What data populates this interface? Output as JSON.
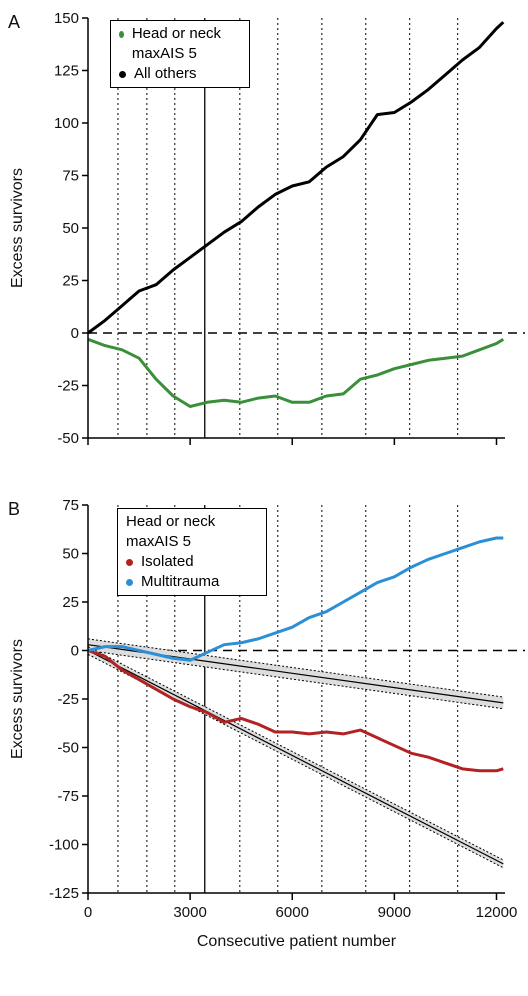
{
  "chart_data": [
    {
      "type": "line",
      "panel_label": "A",
      "y_label": "Excess survivors",
      "x": [
        0,
        500,
        1000,
        1500,
        2000,
        2500,
        3000,
        3500,
        4000,
        4500,
        5000,
        5500,
        6000,
        6500,
        7000,
        7500,
        8000,
        8500,
        9000,
        9500,
        10000,
        10500,
        11000,
        11500,
        12000,
        12200
      ],
      "series": [
        {
          "name": "Head or neck maxAIS 5",
          "color": "#3a8f3a",
          "values": [
            -3,
            -6,
            -8,
            -12,
            -22,
            -30,
            -35,
            -33,
            -32,
            -33,
            -31,
            -30,
            -33,
            -33,
            -30,
            -29,
            -22,
            -20,
            -17,
            -15,
            -13,
            -12,
            -11,
            -8,
            -5,
            -3
          ]
        },
        {
          "name": "All others",
          "color": "#000000",
          "values": [
            0,
            6,
            13,
            20,
            23,
            30,
            36,
            42,
            48,
            53,
            60,
            66,
            70,
            72,
            79,
            84,
            92,
            104,
            105,
            110,
            116,
            123,
            130,
            136,
            145,
            148
          ]
        }
      ],
      "xlim": [
        0,
        12250
      ],
      "xticks": [
        0,
        3000,
        6000,
        9000,
        12000
      ],
      "show_xtick_labels": false,
      "ylim": [
        -50,
        150
      ],
      "yticks": [
        -50,
        -25,
        0,
        25,
        50,
        75,
        100,
        125,
        150
      ],
      "reference_line_y": 0,
      "reference_lines_x": [
        880,
        1730,
        2550,
        4460,
        5575,
        6870,
        8160,
        9450,
        10860
      ],
      "solid_line_x": 3430
    },
    {
      "type": "line",
      "panel_label": "B",
      "y_label": "Excess survivors",
      "x_label": "Consecutive patient number",
      "legend_title": "Head or neck maxAIS 5",
      "x": [
        0,
        500,
        1000,
        1500,
        2000,
        2500,
        3000,
        3500,
        4000,
        4500,
        5000,
        5500,
        6000,
        6500,
        7000,
        7500,
        8000,
        8500,
        9000,
        9500,
        10000,
        10500,
        11000,
        11500,
        12000,
        12200
      ],
      "series": [
        {
          "name": "Isolated",
          "color": "#b22222",
          "values": [
            0,
            -3,
            -10,
            -15,
            -20,
            -25,
            -29,
            -32,
            -37,
            -35,
            -38,
            -42,
            -42,
            -43,
            -42,
            -43,
            -41,
            -45,
            -49,
            -53,
            -55,
            -58,
            -61,
            -62,
            -62,
            -61
          ]
        },
        {
          "name": "Multitrauma",
          "color": "#2a8fd6",
          "values": [
            0,
            2,
            2,
            0,
            -2,
            -4,
            -5,
            -1,
            3,
            4,
            6,
            9,
            12,
            17,
            20,
            25,
            30,
            35,
            38,
            43,
            47,
            50,
            53,
            56,
            58,
            58
          ]
        }
      ],
      "expected_lines": [
        {
          "x": [
            0,
            12200
          ],
          "values": [
            3,
            -27
          ],
          "band": [
            3,
            3
          ]
        },
        {
          "x": [
            0,
            12200
          ],
          "values": [
            0,
            -110
          ],
          "band": [
            2,
            2
          ]
        }
      ],
      "xlim": [
        0,
        12250
      ],
      "xticks": [
        0,
        3000,
        6000,
        9000,
        12000
      ],
      "show_xtick_labels": true,
      "ylim": [
        -125,
        75
      ],
      "yticks": [
        -125,
        -100,
        -75,
        -50,
        -25,
        0,
        25,
        50,
        75
      ],
      "reference_line_y": 0,
      "reference_lines_x": [
        880,
        1730,
        2550,
        4460,
        5575,
        6870,
        8160,
        9450,
        10860
      ],
      "solid_line_x": 3430
    }
  ]
}
